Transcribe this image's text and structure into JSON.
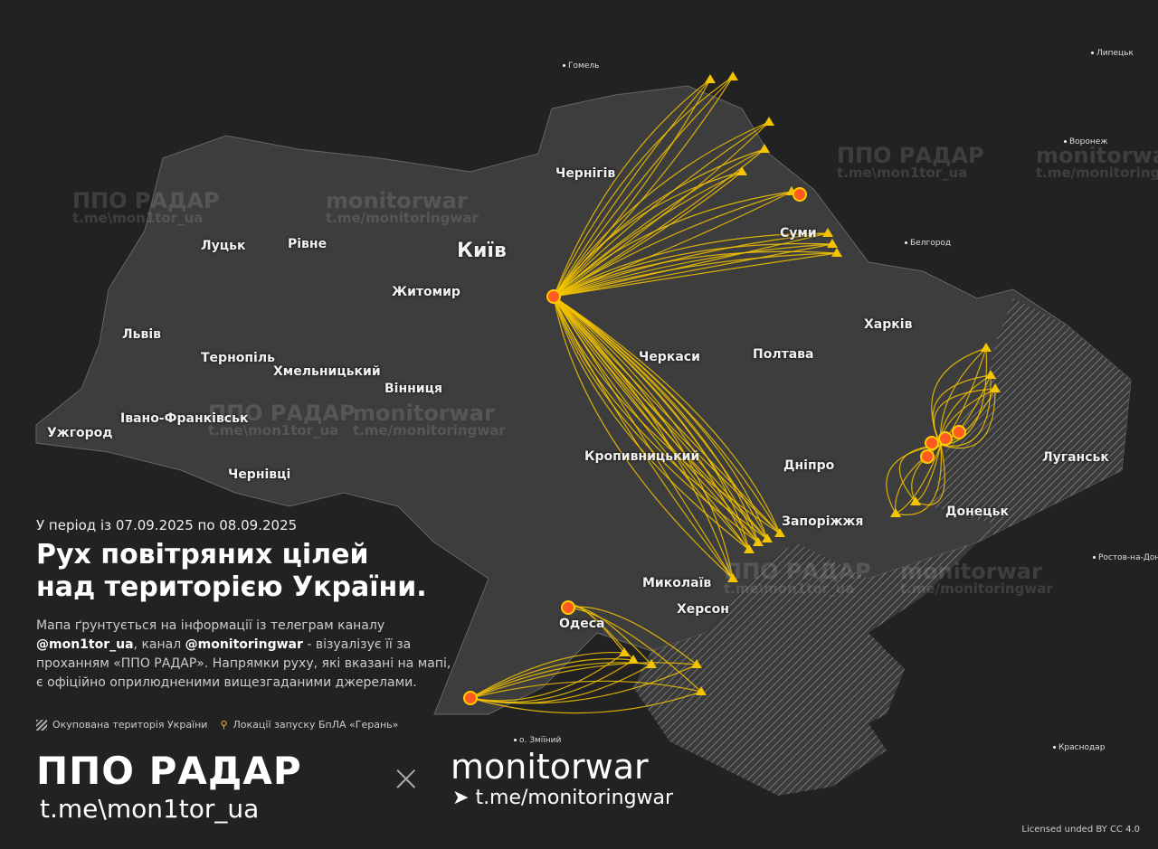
{
  "period": "У період із 07.09.2025 по 08.09.2025",
  "title_line1": "Рух повітряних цілей",
  "title_line2": "над територією України.",
  "description": {
    "p1": "Мапа ґрунтується на інформації із телеграм каналу",
    "handle1": "@mon1tor_ua",
    "p2": ", канал ",
    "handle2": "@monitoringwar",
    "p3": " - візуалізує її за проханням «ППО РАДАР». Напрямки руху, які вказані на мапі, є офіційно оприлюдненими вищезгаданими джерелами."
  },
  "legend": {
    "occupied": "Окупована територія України",
    "launch_sites": "Локації запуску БпЛА «Герань»"
  },
  "brands": {
    "ppo_radar": "ППО РАДАР",
    "ppo_link": "t.me\\mon1tor_ua",
    "separator": "×",
    "monitorwar": "monitorwar",
    "monitorwar_link": "t.me/monitoringwar"
  },
  "watermarks": [
    {
      "a": "ППО РАДАР",
      "b": "t.me\\mon1tor_ua"
    },
    {
      "a": "monitorwar",
      "b": "t.me/monitoringwar"
    }
  ],
  "license": "Licensed unded BY CC 4.0",
  "cities": [
    "Київ",
    "Чернігів",
    "Суми",
    "Харків",
    "Полтава",
    "Черкаси",
    "Житомир",
    "Рівне",
    "Луцьк",
    "Львів",
    "Тернопіль",
    "Хмельницький",
    "Вінниця",
    "Івано-Франківськ",
    "Ужгород",
    "Чернівці",
    "Кропивницький",
    "Дніпро",
    "Запоріжжя",
    "Донецьк",
    "Луганськ",
    "Миколаїв",
    "Херсон",
    "Одеса"
  ],
  "foreign_places": [
    "Гомель",
    "Липецьк",
    "Воронеж",
    "Белгород",
    "Ростов-на-Дону",
    "Краснодар",
    "о. Зміїний"
  ],
  "colors": {
    "route": "#f5c400",
    "background": "#222222",
    "occupied_hatch": "#9a9a9a",
    "explosion": "#ff5a1f"
  }
}
